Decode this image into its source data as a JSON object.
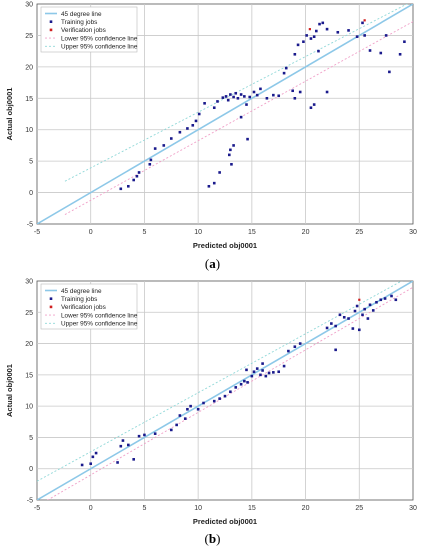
{
  "colors": {
    "diagonal": "#8dc8e8",
    "training": "#1a1a8c",
    "verification": "#d02020",
    "lower_ci": "#f0a0c8",
    "upper_ci": "#90d8d8",
    "grid": "#c8c8c8",
    "tick_text": "#333333"
  },
  "chart_data": [
    {
      "type": "scatter",
      "panel_label": "a",
      "xlabel": "Predicted obj0001",
      "ylabel": "Actual obj0001",
      "xlim": [
        -5,
        30
      ],
      "ylim": [
        -5,
        30
      ],
      "xticks": [
        -5,
        0,
        5,
        10,
        15,
        20,
        25,
        30
      ],
      "yticks": [
        -5,
        0,
        5,
        10,
        15,
        20,
        25,
        30
      ],
      "grid": true,
      "legend_position": "top-left",
      "legend": [
        "45 degree line",
        "Training jobs",
        "Verification jobs",
        "Lower 95% confidence line",
        "Upper 95% confidence line"
      ],
      "lower_ci": [
        [
          -2.4,
          -3.5
        ],
        [
          30,
          27.2
        ]
      ],
      "upper_ci": [
        [
          -2.4,
          1.8
        ],
        [
          30,
          30.5
        ]
      ],
      "series": [
        {
          "name": "Training jobs",
          "points": [
            [
              2.8,
              0.6
            ],
            [
              3.5,
              1.0
            ],
            [
              4.0,
              2.0
            ],
            [
              4.3,
              2.6
            ],
            [
              4.5,
              3.2
            ],
            [
              5.5,
              4.5
            ],
            [
              5.6,
              5.2
            ],
            [
              6.0,
              7.0
            ],
            [
              6.8,
              7.5
            ],
            [
              7.5,
              8.6
            ],
            [
              8.3,
              9.6
            ],
            [
              9.0,
              10.2
            ],
            [
              9.5,
              10.7
            ],
            [
              9.8,
              11.4
            ],
            [
              10.1,
              12.5
            ],
            [
              10.6,
              14.2
            ],
            [
              11.0,
              1.0
            ],
            [
              11.5,
              1.5
            ],
            [
              12.0,
              3.2
            ],
            [
              11.5,
              13.5
            ],
            [
              11.8,
              14.5
            ],
            [
              12.3,
              15.1
            ],
            [
              12.6,
              15.3
            ],
            [
              12.8,
              14.7
            ],
            [
              13.0,
              15.6
            ],
            [
              13.3,
              15.2
            ],
            [
              13.5,
              15.8
            ],
            [
              13.7,
              15.0
            ],
            [
              14.0,
              15.6
            ],
            [
              14.5,
              14.0
            ],
            [
              14.3,
              15.3
            ],
            [
              12.9,
              6.0
            ],
            [
              13.0,
              6.8
            ],
            [
              13.3,
              7.5
            ],
            [
              13.1,
              4.5
            ],
            [
              14.6,
              8.5
            ],
            [
              14.0,
              12.0
            ],
            [
              14.8,
              15.2
            ],
            [
              15.2,
              16.0
            ],
            [
              15.5,
              15.5
            ],
            [
              15.8,
              16.5
            ],
            [
              16.4,
              15.0
            ],
            [
              17.0,
              15.5
            ],
            [
              17.5,
              15.4
            ],
            [
              18.0,
              19.0
            ],
            [
              18.2,
              19.8
            ],
            [
              18.8,
              16.2
            ],
            [
              19.0,
              15.0
            ],
            [
              19.5,
              16.0
            ],
            [
              19.0,
              22.0
            ],
            [
              19.3,
              23.5
            ],
            [
              19.8,
              24.0
            ],
            [
              20.1,
              25.0
            ],
            [
              20.5,
              24.5
            ],
            [
              20.8,
              24.8
            ],
            [
              21.0,
              25.7
            ],
            [
              21.3,
              26.8
            ],
            [
              21.6,
              27.0
            ],
            [
              22.0,
              26.0
            ],
            [
              21.2,
              22.5
            ],
            [
              20.8,
              14.0
            ],
            [
              20.5,
              13.5
            ],
            [
              22.0,
              16.0
            ],
            [
              23.0,
              25.5
            ],
            [
              24.0,
              25.8
            ],
            [
              24.8,
              24.8
            ],
            [
              25.3,
              27.0
            ],
            [
              25.5,
              25.0
            ],
            [
              26.0,
              22.6
            ],
            [
              27.0,
              22.2
            ],
            [
              27.5,
              25.0
            ],
            [
              27.8,
              19.2
            ],
            [
              28.8,
              22.0
            ],
            [
              29.2,
              24.0
            ]
          ]
        },
        {
          "name": "Verification jobs",
          "points": [
            [
              20.4,
              26.0
            ],
            [
              25.5,
              27.4
            ]
          ]
        }
      ]
    },
    {
      "type": "scatter",
      "panel_label": "b",
      "xlabel": "Predicted obj0001",
      "ylabel": "Actual obj0001",
      "xlim": [
        -5,
        30
      ],
      "ylim": [
        -5,
        30
      ],
      "xticks": [
        -5,
        0,
        5,
        10,
        15,
        20,
        25,
        30
      ],
      "yticks": [
        -5,
        0,
        5,
        10,
        15,
        20,
        25,
        30
      ],
      "grid": true,
      "legend_position": "top-left",
      "legend": [
        "45 degree line",
        "Training jobs",
        "Verification jobs",
        "Lower 95% confidence line",
        "Upper 95% confidence line"
      ],
      "lower_ci": [
        [
          -5,
          -6.0
        ],
        [
          30,
          29.0
        ]
      ],
      "upper_ci": [
        [
          -5,
          -2.0
        ],
        [
          30,
          31.0
        ]
      ],
      "series": [
        {
          "name": "Training jobs",
          "points": [
            [
              -0.8,
              0.6
            ],
            [
              0.0,
              0.8
            ],
            [
              0.2,
              1.9
            ],
            [
              0.5,
              2.5
            ],
            [
              2.5,
              1.0
            ],
            [
              2.8,
              3.6
            ],
            [
              3.0,
              4.5
            ],
            [
              3.5,
              3.8
            ],
            [
              4.0,
              1.5
            ],
            [
              4.5,
              5.2
            ],
            [
              5.0,
              5.4
            ],
            [
              6.0,
              5.6
            ],
            [
              7.5,
              6.2
            ],
            [
              8.0,
              7.0
            ],
            [
              8.3,
              8.5
            ],
            [
              8.8,
              8.0
            ],
            [
              9.0,
              9.5
            ],
            [
              9.3,
              10.0
            ],
            [
              10.0,
              9.5
            ],
            [
              10.5,
              10.5
            ],
            [
              11.5,
              10.8
            ],
            [
              12.0,
              11.2
            ],
            [
              12.5,
              11.6
            ],
            [
              13.0,
              12.3
            ],
            [
              13.5,
              13.0
            ],
            [
              14.0,
              13.5
            ],
            [
              14.3,
              14.0
            ],
            [
              14.6,
              13.8
            ],
            [
              15.0,
              14.8
            ],
            [
              15.2,
              15.5
            ],
            [
              15.5,
              16.0
            ],
            [
              15.8,
              15.0
            ],
            [
              16.0,
              15.7
            ],
            [
              16.3,
              14.8
            ],
            [
              16.6,
              15.3
            ],
            [
              17.0,
              15.4
            ],
            [
              17.5,
              15.5
            ],
            [
              18.0,
              16.4
            ],
            [
              18.4,
              18.8
            ],
            [
              19.0,
              19.5
            ],
            [
              19.5,
              20.0
            ],
            [
              22.0,
              22.5
            ],
            [
              22.4,
              23.2
            ],
            [
              22.8,
              22.8
            ],
            [
              23.2,
              24.6
            ],
            [
              23.6,
              24.2
            ],
            [
              24.0,
              24.0
            ],
            [
              24.4,
              22.4
            ],
            [
              24.6,
              25.2
            ],
            [
              24.8,
              26.0
            ],
            [
              25.0,
              22.2
            ],
            [
              25.3,
              24.6
            ],
            [
              25.5,
              25.5
            ],
            [
              25.8,
              24.0
            ],
            [
              26.0,
              26.2
            ],
            [
              26.3,
              25.3
            ],
            [
              26.6,
              26.6
            ],
            [
              27.0,
              27.0
            ],
            [
              27.4,
              27.2
            ],
            [
              28.0,
              27.6
            ],
            [
              28.4,
              27.0
            ],
            [
              22.8,
              19.0
            ],
            [
              16.0,
              16.8
            ],
            [
              14.5,
              15.8
            ]
          ]
        },
        {
          "name": "Verification jobs",
          "points": [
            [
              25.0,
              27.0
            ]
          ]
        }
      ]
    }
  ],
  "captions": [
    {
      "open": "(",
      "label": "a",
      "close": ")"
    },
    {
      "open": "(",
      "label": "b",
      "close": ")"
    }
  ]
}
